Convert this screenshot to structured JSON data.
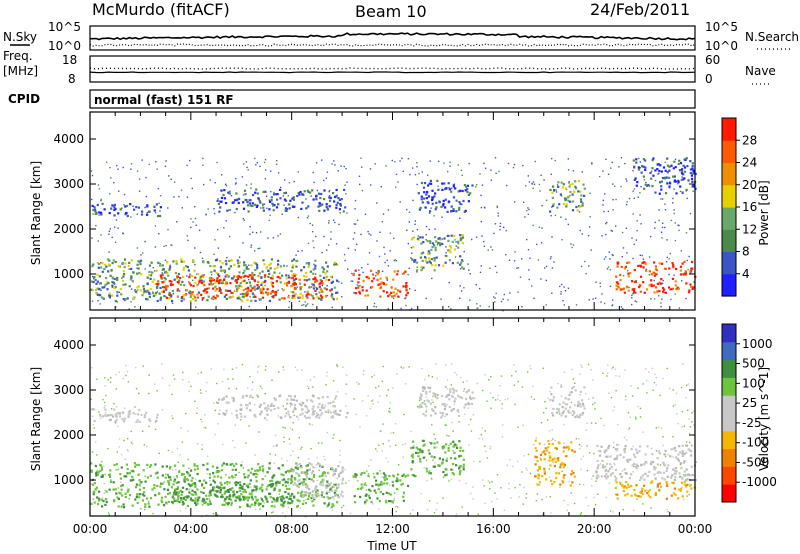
{
  "header": {
    "station": "McMurdo (fitACF)",
    "beam": "Beam 10",
    "date": "24/Feb/2011"
  },
  "top_panels": {
    "nsky_label": "N.Sky",
    "nsearch_label": "N.Search",
    "noise_ticks_left": [
      "10^5",
      "10^0"
    ],
    "noise_ticks_right": [
      "10^5",
      "10^0"
    ],
    "freq_label_1": "Freq.",
    "freq_label_2": "[MHz]",
    "freq_ticks": [
      "18",
      "8"
    ],
    "nave_label": "Nave",
    "nave_ticks": [
      "60",
      "0"
    ],
    "cpid_label": "CPID",
    "cpid_value": "normal (fast) 151 RF"
  },
  "colors": {
    "power_scale": [
      "#1f1fff",
      "#3a55c8",
      "#4a8a4a",
      "#6aa86a",
      "#e6d000",
      "#f09000",
      "#ff5a00",
      "#ff1a00"
    ],
    "velocity_scale": [
      "#3030c0",
      "#3e6bc0",
      "#3f8f3f",
      "#6cc43c",
      "#c8c8c8",
      "#c8c8c8",
      "#f5b800",
      "#f08000",
      "#ff4500",
      "#ff0000"
    ]
  },
  "chart_data": [
    {
      "type": "heatmap",
      "name": "power",
      "xlabel": "",
      "ylabel": "Slant Range [km]",
      "yticks": [
        "1000",
        "2000",
        "3000",
        "4000"
      ],
      "ylim": [
        200,
        4600
      ],
      "xlim_hours": [
        0,
        24
      ],
      "colorbar_label": "Power [dB]",
      "colorbar_ticks": [
        "28",
        "24",
        "20",
        "16",
        "12",
        "8",
        "4"
      ],
      "colorbar_range": [
        0,
        32
      ],
      "regions": [
        {
          "t0": 0.0,
          "t1": 9.8,
          "r0": 420,
          "r1": 1350,
          "level": "mid"
        },
        {
          "t0": 2.6,
          "t1": 9.6,
          "r0": 480,
          "r1": 1000,
          "level": "high"
        },
        {
          "t0": 10.4,
          "t1": 12.6,
          "r0": 520,
          "r1": 1100,
          "level": "high"
        },
        {
          "t0": 12.7,
          "t1": 14.8,
          "r0": 1100,
          "r1": 1900,
          "level": "mid"
        },
        {
          "t0": 20.8,
          "t1": 24.0,
          "r0": 600,
          "r1": 1300,
          "level": "high"
        },
        {
          "t0": 18.2,
          "t1": 19.6,
          "r0": 2400,
          "r1": 3100,
          "level": "mid"
        },
        {
          "t0": 13.0,
          "t1": 15.2,
          "r0": 2400,
          "r1": 3100,
          "level": "low"
        },
        {
          "t0": 0.0,
          "t1": 2.8,
          "r0": 2300,
          "r1": 2600,
          "level": "low"
        },
        {
          "t0": 5.0,
          "t1": 10.2,
          "r0": 2400,
          "r1": 2900,
          "level": "low"
        },
        {
          "t0": 21.5,
          "t1": 24.0,
          "r0": 2800,
          "r1": 3600,
          "level": "low"
        }
      ]
    },
    {
      "type": "heatmap",
      "name": "velocity",
      "xlabel": "Time UT",
      "ylabel": "Slant Range [km]",
      "xticks": [
        "00:00",
        "04:00",
        "08:00",
        "12:00",
        "16:00",
        "20:00",
        "00:00"
      ],
      "yticks": [
        "1000",
        "2000",
        "3000",
        "4000"
      ],
      "ylim": [
        200,
        4600
      ],
      "xlim_hours": [
        0,
        24
      ],
      "colorbar_label": "Velocity [m s^-1]",
      "colorbar_ticks": [
        "1000",
        "500",
        "100",
        "25",
        "-25",
        "-100",
        "-500",
        "-1000"
      ],
      "regions": [
        {
          "t0": 0.0,
          "t1": 9.8,
          "r0": 420,
          "r1": 1400,
          "level": "green"
        },
        {
          "t0": 3.0,
          "t1": 8.0,
          "r0": 500,
          "r1": 1000,
          "level": "darkgreen"
        },
        {
          "t0": 8.0,
          "t1": 10.0,
          "r0": 600,
          "r1": 1400,
          "level": "gray"
        },
        {
          "t0": 10.4,
          "t1": 12.6,
          "r0": 520,
          "r1": 1200,
          "level": "green"
        },
        {
          "t0": 12.7,
          "t1": 14.8,
          "r0": 1100,
          "r1": 1900,
          "level": "green"
        },
        {
          "t0": 17.6,
          "t1": 19.2,
          "r0": 900,
          "r1": 1900,
          "level": "orange"
        },
        {
          "t0": 20.8,
          "t1": 24.0,
          "r0": 600,
          "r1": 1000,
          "level": "orange"
        },
        {
          "t0": 20.0,
          "t1": 24.0,
          "r0": 1000,
          "r1": 1800,
          "level": "gray"
        },
        {
          "t0": 18.2,
          "t1": 19.6,
          "r0": 2400,
          "r1": 3100,
          "level": "gray"
        },
        {
          "t0": 13.0,
          "t1": 15.2,
          "r0": 2400,
          "r1": 3100,
          "level": "gray"
        },
        {
          "t0": 0.0,
          "t1": 2.8,
          "r0": 2300,
          "r1": 2600,
          "level": "gray"
        },
        {
          "t0": 5.0,
          "t1": 10.2,
          "r0": 2400,
          "r1": 2900,
          "level": "gray"
        }
      ]
    }
  ]
}
